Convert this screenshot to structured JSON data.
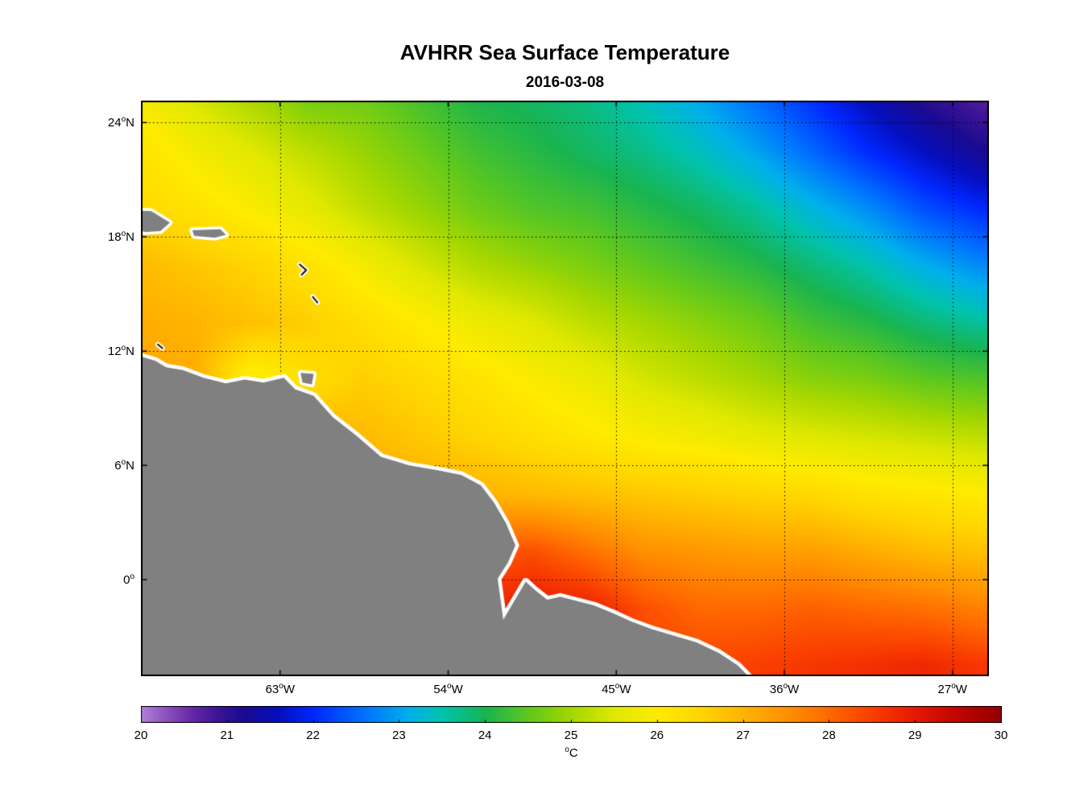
{
  "title": "AVHRR Sea Surface Temperature",
  "subtitle": "2016-03-08",
  "degree_glyph": "o",
  "axes": {
    "lat_ticks": [
      {
        "num": "24",
        "hemi": "N",
        "lat": 24
      },
      {
        "num": "18",
        "hemi": "N",
        "lat": 18
      },
      {
        "num": "12",
        "hemi": "N",
        "lat": 12
      },
      {
        "num": "6",
        "hemi": "N",
        "lat": 6
      },
      {
        "num": "0",
        "hemi": "",
        "lat": 0
      }
    ],
    "lon_ticks": [
      {
        "num": "63",
        "hemi": "W",
        "lon": -63
      },
      {
        "num": "54",
        "hemi": "W",
        "lon": -54
      },
      {
        "num": "45",
        "hemi": "W",
        "lon": -45
      },
      {
        "num": "36",
        "hemi": "W",
        "lon": -36
      },
      {
        "num": "27",
        "hemi": "W",
        "lon": -27
      }
    ]
  },
  "colorbar": {
    "ticks": [
      "20",
      "21",
      "22",
      "23",
      "24",
      "25",
      "26",
      "27",
      "28",
      "29",
      "30"
    ],
    "min": 20,
    "max": 30,
    "unit_letter": "C"
  },
  "chart_data": {
    "type": "heatmap",
    "title": "AVHRR Sea Surface Temperature",
    "subtitle": "2016-03-08",
    "units": "°C",
    "value_range": [
      20,
      30
    ],
    "lon_range": [
      -70.45,
      -25.05
    ],
    "lat_range": [
      -5.07,
      25.15
    ],
    "gridline_lats": [
      24,
      18,
      12,
      6,
      0
    ],
    "gridline_lons": [
      -63,
      -54,
      -45,
      -36,
      -27
    ],
    "grid_on": true,
    "legend_position": "bottom-colorbar",
    "land_color": "#808080",
    "coast_gap_color": "#ffffff",
    "colormap_stops": [
      [
        0.0,
        175,
        130,
        215
      ],
      [
        0.03,
        140,
        80,
        190
      ],
      [
        0.06,
        100,
        40,
        165
      ],
      [
        0.09,
        60,
        20,
        150
      ],
      [
        0.12,
        25,
        10,
        145
      ],
      [
        0.16,
        5,
        15,
        190
      ],
      [
        0.2,
        0,
        40,
        255
      ],
      [
        0.26,
        0,
        115,
        255
      ],
      [
        0.31,
        0,
        175,
        235
      ],
      [
        0.35,
        0,
        195,
        175
      ],
      [
        0.4,
        25,
        180,
        80
      ],
      [
        0.45,
        95,
        200,
        30
      ],
      [
        0.5,
        165,
        215,
        0
      ],
      [
        0.55,
        225,
        232,
        0
      ],
      [
        0.6,
        255,
        235,
        0
      ],
      [
        0.65,
        255,
        213,
        0
      ],
      [
        0.7,
        255,
        180,
        0
      ],
      [
        0.75,
        255,
        145,
        0
      ],
      [
        0.8,
        255,
        105,
        0
      ],
      [
        0.85,
        250,
        62,
        0
      ],
      [
        0.9,
        230,
        25,
        5
      ],
      [
        0.95,
        193,
        5,
        0
      ],
      [
        1.0,
        148,
        0,
        0
      ]
    ],
    "grid_lon": [
      -70.5,
      -67.5,
      -64.5,
      -61.5,
      -58.5,
      -55.5,
      -52.5,
      -49.5,
      -46.5,
      -43.5,
      -40.5,
      -37.5,
      -34.5,
      -31.5,
      -28.5,
      -25.5
    ],
    "grid_lat": [
      25.5,
      22.5,
      19.5,
      16.5,
      13.5,
      10.5,
      7.5,
      4.5,
      1.5,
      -1.5,
      -4.5
    ],
    "sst": [
      [
        25.8,
        25.4,
        25.0,
        24.6,
        24.6,
        24.3,
        24.0,
        23.9,
        23.7,
        23.4,
        23.0,
        22.5,
        22.0,
        21.5,
        21.0,
        20.7
      ],
      [
        26.2,
        25.8,
        25.5,
        25.2,
        24.9,
        24.6,
        24.3,
        24.1,
        23.9,
        23.7,
        23.4,
        23.0,
        22.5,
        22.0,
        21.6,
        21.2
      ],
      [
        26.4,
        26.2,
        25.9,
        25.6,
        25.2,
        24.9,
        24.6,
        24.4,
        24.3,
        24.1,
        23.9,
        23.6,
        23.2,
        22.8,
        22.3,
        22.0
      ],
      [
        26.9,
        26.7,
        26.5,
        26.2,
        25.8,
        25.4,
        25.1,
        24.9,
        24.7,
        24.5,
        24.3,
        24.1,
        23.8,
        23.5,
        23.1,
        22.8
      ],
      [
        27.1,
        27.0,
        26.8,
        26.6,
        26.3,
        26.0,
        25.7,
        25.5,
        25.2,
        25.0,
        24.8,
        24.6,
        24.3,
        24.1,
        23.8,
        23.6
      ],
      [
        27.2,
        27.1,
        25.8,
        26.3,
        26.6,
        26.4,
        26.2,
        25.9,
        25.7,
        25.4,
        25.2,
        25.0,
        24.8,
        24.7,
        24.5,
        24.4
      ],
      [
        27.4,
        27.4,
        27.3,
        27.1,
        26.9,
        26.7,
        26.5,
        26.3,
        26.1,
        25.9,
        25.8,
        25.6,
        25.5,
        25.4,
        25.3,
        25.2
      ],
      [
        27.5,
        27.5,
        27.5,
        27.4,
        27.3,
        27.1,
        27.0,
        26.9,
        26.8,
        26.7,
        26.6,
        26.5,
        26.4,
        26.2,
        26.1,
        26.0
      ],
      [
        27.8,
        27.8,
        27.8,
        27.8,
        27.7,
        27.8,
        28.1,
        28.3,
        27.9,
        27.5,
        27.4,
        27.3,
        27.3,
        27.1,
        26.9,
        26.8
      ],
      [
        28.0,
        28.0,
        28.0,
        28.1,
        28.3,
        28.5,
        28.8,
        29.0,
        28.9,
        28.3,
        28.0,
        28.0,
        28.1,
        28.0,
        27.9,
        27.7
      ],
      [
        28.2,
        28.2,
        28.2,
        28.3,
        28.5,
        28.8,
        29.0,
        29.1,
        28.8,
        28.5,
        28.4,
        28.5,
        28.6,
        28.7,
        28.8,
        28.6
      ]
    ],
    "land": {
      "mainland": [
        [
          -72.0,
          11.9
        ],
        [
          -70.4,
          11.7
        ],
        [
          -69.7,
          11.5
        ],
        [
          -69.1,
          11.15
        ],
        [
          -68.2,
          11.0
        ],
        [
          -67.1,
          10.6
        ],
        [
          -65.9,
          10.3
        ],
        [
          -64.9,
          10.5
        ],
        [
          -63.9,
          10.35
        ],
        [
          -62.8,
          10.6
        ],
        [
          -62.2,
          10.0
        ],
        [
          -61.2,
          9.65
        ],
        [
          -60.2,
          8.55
        ],
        [
          -58.9,
          7.55
        ],
        [
          -57.6,
          6.45
        ],
        [
          -56.1,
          6.0
        ],
        [
          -54.6,
          5.75
        ],
        [
          -53.3,
          5.5
        ],
        [
          -52.25,
          4.95
        ],
        [
          -51.55,
          4.05
        ],
        [
          -50.9,
          2.95
        ],
        [
          -50.4,
          1.8
        ],
        [
          -50.8,
          0.9
        ],
        [
          -51.35,
          0.05
        ],
        [
          -51.05,
          -2.1
        ],
        [
          -49.85,
          -0.1
        ],
        [
          -49.35,
          -0.55
        ],
        [
          -48.7,
          -1.05
        ],
        [
          -48.0,
          -0.9
        ],
        [
          -47.2,
          -1.1
        ],
        [
          -46.2,
          -1.35
        ],
        [
          -45.2,
          -1.75
        ],
        [
          -44.2,
          -2.2
        ],
        [
          -43.1,
          -2.6
        ],
        [
          -41.9,
          -2.95
        ],
        [
          -40.7,
          -3.3
        ],
        [
          -39.5,
          -3.85
        ],
        [
          -38.5,
          -4.5
        ],
        [
          -37.8,
          -5.2
        ],
        [
          -37.4,
          -6.5
        ],
        [
          -72.0,
          -6.5
        ]
      ],
      "hispaniola": [
        [
          -71.5,
          19.4
        ],
        [
          -69.9,
          19.35
        ],
        [
          -68.9,
          18.75
        ],
        [
          -69.4,
          18.3
        ],
        [
          -70.2,
          18.25
        ],
        [
          -71.5,
          18.6
        ]
      ],
      "puerto_rico": [
        [
          -67.7,
          18.35
        ],
        [
          -66.2,
          18.4
        ],
        [
          -65.9,
          18.1
        ],
        [
          -66.5,
          17.95
        ],
        [
          -67.6,
          18.05
        ]
      ],
      "trinidad": [
        [
          -61.9,
          10.85
        ],
        [
          -61.2,
          10.8
        ],
        [
          -61.3,
          10.25
        ],
        [
          -61.8,
          10.35
        ]
      ],
      "islet_marks": [
        [
          [
            -61.95,
            16.55
          ],
          [
            -61.6,
            16.25
          ],
          [
            -61.85,
            16.0
          ]
        ],
        [
          [
            -61.25,
            14.85
          ],
          [
            -61.0,
            14.55
          ]
        ],
        [
          [
            -69.55,
            12.35
          ],
          [
            -69.3,
            12.15
          ]
        ]
      ]
    }
  }
}
